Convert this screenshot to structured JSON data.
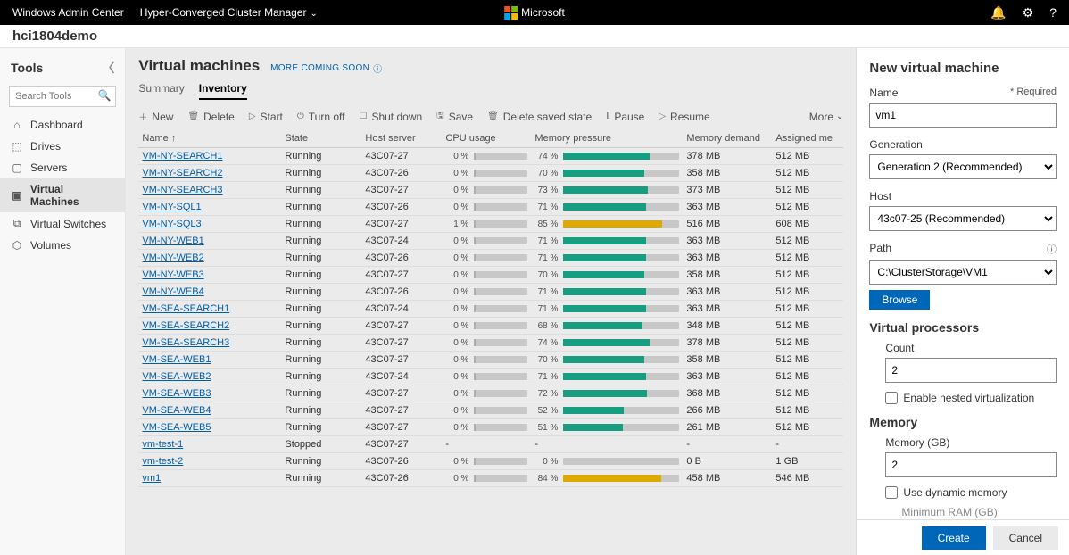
{
  "topbar": {
    "product": "Windows Admin Center",
    "module": "Hyper-Converged Cluster Manager",
    "brand": "Microsoft"
  },
  "host_name": "hci1804demo",
  "sidebar": {
    "heading": "Tools",
    "search_placeholder": "Search Tools",
    "items": [
      {
        "icon": "⌂",
        "label": "Dashboard"
      },
      {
        "icon": "⬚",
        "label": "Drives"
      },
      {
        "icon": "▢",
        "label": "Servers"
      },
      {
        "icon": "▣",
        "label": "Virtual Machines",
        "selected": true
      },
      {
        "icon": "⧉",
        "label": "Virtual Switches"
      },
      {
        "icon": "⬡",
        "label": "Volumes"
      }
    ]
  },
  "main": {
    "title": "Virtual machines",
    "more_text": "MORE COMING SOON",
    "tabs": [
      {
        "label": "Summary",
        "active": false
      },
      {
        "label": "Inventory",
        "active": true
      }
    ],
    "toolbar": [
      {
        "icon": "＋",
        "label": "New"
      },
      {
        "icon": "🗑",
        "label": "Delete"
      },
      {
        "icon": "▷",
        "label": "Start"
      },
      {
        "icon": "⏻",
        "label": "Turn off"
      },
      {
        "icon": "☐",
        "label": "Shut down"
      },
      {
        "icon": "🖫",
        "label": "Save"
      },
      {
        "icon": "🗑",
        "label": "Delete saved state"
      },
      {
        "icon": "‖",
        "label": "Pause"
      },
      {
        "icon": "▷",
        "label": "Resume"
      }
    ],
    "more_label": "More",
    "columns": [
      "Name ↑",
      "State",
      "Host server",
      "CPU usage",
      "Memory pressure",
      "Memory demand",
      "Assigned me"
    ],
    "rows": [
      {
        "name": "VM-NY-SEARCH1",
        "state": "Running",
        "host": "43C07-27",
        "cpu": 0,
        "mem_pct": 74,
        "mem_color": "teal",
        "mem_demand": "378 MB",
        "assigned": "512 MB"
      },
      {
        "name": "VM-NY-SEARCH2",
        "state": "Running",
        "host": "43C07-26",
        "cpu": 0,
        "mem_pct": 70,
        "mem_color": "teal",
        "mem_demand": "358 MB",
        "assigned": "512 MB"
      },
      {
        "name": "VM-NY-SEARCH3",
        "state": "Running",
        "host": "43C07-27",
        "cpu": 0,
        "mem_pct": 73,
        "mem_color": "teal",
        "mem_demand": "373 MB",
        "assigned": "512 MB"
      },
      {
        "name": "VM-NY-SQL1",
        "state": "Running",
        "host": "43C07-26",
        "cpu": 0,
        "mem_pct": 71,
        "mem_color": "teal",
        "mem_demand": "363 MB",
        "assigned": "512 MB"
      },
      {
        "name": "VM-NY-SQL3",
        "state": "Running",
        "host": "43C07-27",
        "cpu": 1,
        "mem_pct": 85,
        "mem_color": "yellow",
        "mem_demand": "516 MB",
        "assigned": "608 MB"
      },
      {
        "name": "VM-NY-WEB1",
        "state": "Running",
        "host": "43C07-24",
        "cpu": 0,
        "mem_pct": 71,
        "mem_color": "teal",
        "mem_demand": "363 MB",
        "assigned": "512 MB"
      },
      {
        "name": "VM-NY-WEB2",
        "state": "Running",
        "host": "43C07-26",
        "cpu": 0,
        "mem_pct": 71,
        "mem_color": "teal",
        "mem_demand": "363 MB",
        "assigned": "512 MB"
      },
      {
        "name": "VM-NY-WEB3",
        "state": "Running",
        "host": "43C07-27",
        "cpu": 0,
        "mem_pct": 70,
        "mem_color": "teal",
        "mem_demand": "358 MB",
        "assigned": "512 MB"
      },
      {
        "name": "VM-NY-WEB4",
        "state": "Running",
        "host": "43C07-26",
        "cpu": 0,
        "mem_pct": 71,
        "mem_color": "teal",
        "mem_demand": "363 MB",
        "assigned": "512 MB"
      },
      {
        "name": "VM-SEA-SEARCH1",
        "state": "Running",
        "host": "43C07-24",
        "cpu": 0,
        "mem_pct": 71,
        "mem_color": "teal",
        "mem_demand": "363 MB",
        "assigned": "512 MB"
      },
      {
        "name": "VM-SEA-SEARCH2",
        "state": "Running",
        "host": "43C07-27",
        "cpu": 0,
        "mem_pct": 68,
        "mem_color": "teal",
        "mem_demand": "348 MB",
        "assigned": "512 MB"
      },
      {
        "name": "VM-SEA-SEARCH3",
        "state": "Running",
        "host": "43C07-27",
        "cpu": 0,
        "mem_pct": 74,
        "mem_color": "teal",
        "mem_demand": "378 MB",
        "assigned": "512 MB"
      },
      {
        "name": "VM-SEA-WEB1",
        "state": "Running",
        "host": "43C07-27",
        "cpu": 0,
        "mem_pct": 70,
        "mem_color": "teal",
        "mem_demand": "358 MB",
        "assigned": "512 MB"
      },
      {
        "name": "VM-SEA-WEB2",
        "state": "Running",
        "host": "43C07-24",
        "cpu": 0,
        "mem_pct": 71,
        "mem_color": "teal",
        "mem_demand": "363 MB",
        "assigned": "512 MB"
      },
      {
        "name": "VM-SEA-WEB3",
        "state": "Running",
        "host": "43C07-27",
        "cpu": 0,
        "mem_pct": 72,
        "mem_color": "teal",
        "mem_demand": "368 MB",
        "assigned": "512 MB"
      },
      {
        "name": "VM-SEA-WEB4",
        "state": "Running",
        "host": "43C07-27",
        "cpu": 0,
        "mem_pct": 52,
        "mem_color": "teal",
        "mem_demand": "266 MB",
        "assigned": "512 MB"
      },
      {
        "name": "VM-SEA-WEB5",
        "state": "Running",
        "host": "43C07-27",
        "cpu": 0,
        "mem_pct": 51,
        "mem_color": "teal",
        "mem_demand": "261 MB",
        "assigned": "512 MB"
      },
      {
        "name": "vm-test-1",
        "state": "Stopped",
        "host": "43C07-27",
        "cpu": null,
        "mem_pct": null,
        "mem_color": "",
        "mem_demand": "-",
        "assigned": "-"
      },
      {
        "name": "vm-test-2",
        "state": "Running",
        "host": "43C07-26",
        "cpu": 0,
        "mem_pct": 0,
        "mem_color": "teal",
        "mem_demand": "0 B",
        "assigned": "1 GB"
      },
      {
        "name": "vm1",
        "state": "Running",
        "host": "43C07-26",
        "cpu": 0,
        "mem_pct": 84,
        "mem_color": "yellow",
        "mem_demand": "458 MB",
        "assigned": "546 MB"
      }
    ]
  },
  "panel": {
    "title": "New virtual machine",
    "name_label": "Name",
    "required_text": "* Required",
    "name_value": "vm1",
    "generation_label": "Generation",
    "generation_value": "Generation 2 (Recommended)",
    "host_label": "Host",
    "host_value": "43c07-25 (Recommended)",
    "path_label": "Path",
    "path_value": "C:\\ClusterStorage\\VM1",
    "browse_label": "Browse",
    "vp_heading": "Virtual processors",
    "count_label": "Count",
    "count_value": "2",
    "nested_label": "Enable nested virtualization",
    "memory_heading": "Memory",
    "memory_gb_label": "Memory (GB)",
    "memory_gb_value": "2",
    "dynamic_label": "Use dynamic memory",
    "min_ram_label": "Minimum RAM (GB)",
    "create_label": "Create",
    "cancel_label": "Cancel"
  },
  "colors": {
    "accent": "#0067b8",
    "teal": "#1aab8a",
    "yellow": "#f2b900",
    "grey_bar": "#d9d9d9"
  }
}
